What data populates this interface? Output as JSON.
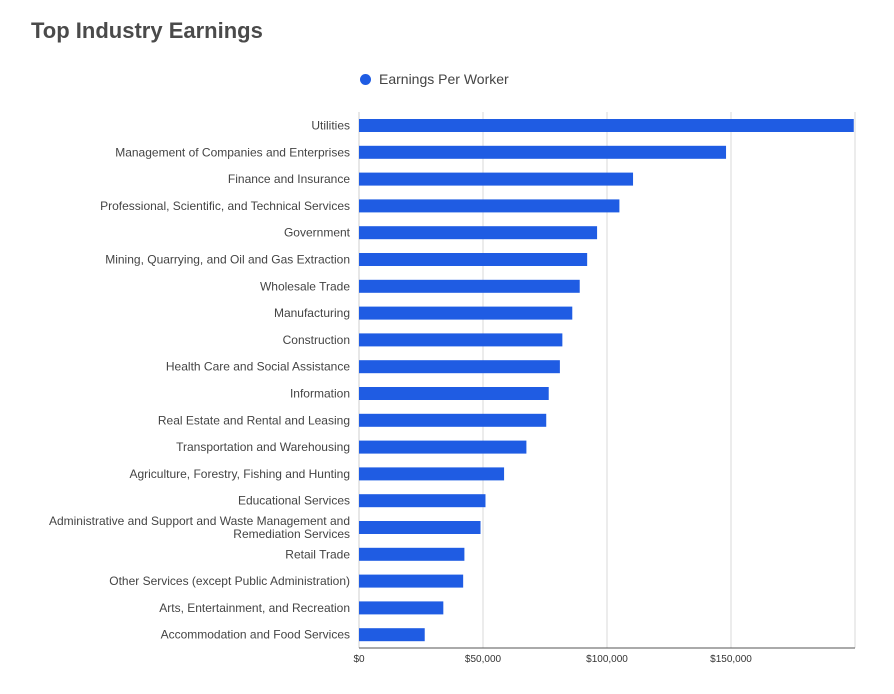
{
  "chart_data": {
    "type": "bar",
    "orientation": "horizontal",
    "title": "Top Industry Earnings",
    "xlabel": "",
    "ylabel": "",
    "legend_position": "top",
    "grid": true,
    "color": "#1f5ce3",
    "series": [
      {
        "name": "Earnings Per Worker",
        "values": [
          199500,
          148000,
          110500,
          105000,
          96000,
          92000,
          89000,
          86000,
          82000,
          81000,
          76500,
          75500,
          67500,
          58500,
          51000,
          49000,
          42500,
          42000,
          34000,
          26500
        ]
      }
    ],
    "categories": [
      [
        "Utilities"
      ],
      [
        "Management of Companies and Enterprises"
      ],
      [
        "Finance and Insurance"
      ],
      [
        "Professional, Scientific, and Technical Services"
      ],
      [
        "Government"
      ],
      [
        "Mining, Quarrying, and Oil and Gas Extraction"
      ],
      [
        "Wholesale Trade"
      ],
      [
        "Manufacturing"
      ],
      [
        "Construction"
      ],
      [
        "Health Care and Social Assistance"
      ],
      [
        "Information"
      ],
      [
        "Real Estate and Rental and Leasing"
      ],
      [
        "Transportation and Warehousing"
      ],
      [
        "Agriculture, Forestry, Fishing and Hunting"
      ],
      [
        "Educational Services"
      ],
      [
        "Administrative and Support and Waste Management and",
        "Remediation Services"
      ],
      [
        "Retail Trade"
      ],
      [
        "Other Services (except Public Administration)"
      ],
      [
        "Arts, Entertainment, and Recreation"
      ],
      [
        "Accommodation and Food Services"
      ]
    ],
    "xlim": [
      0,
      200000
    ],
    "xticks": [
      0,
      50000,
      100000,
      150000
    ],
    "xtick_labels": [
      "$0",
      "$50,000",
      "$100,000",
      "$150,000"
    ]
  }
}
